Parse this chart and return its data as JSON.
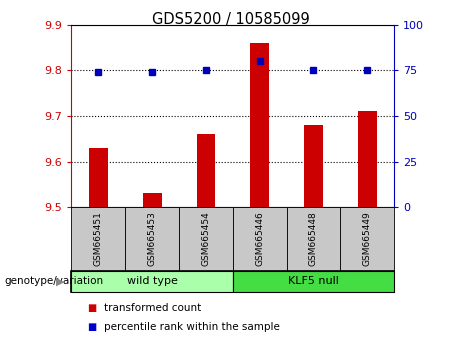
{
  "title": "GDS5200 / 10585099",
  "categories": [
    "GSM665451",
    "GSM665453",
    "GSM665454",
    "GSM665446",
    "GSM665448",
    "GSM665449"
  ],
  "red_values": [
    9.63,
    9.53,
    9.66,
    9.86,
    9.68,
    9.71
  ],
  "blue_values": [
    74,
    74,
    75,
    80,
    75,
    75
  ],
  "ylim_left": [
    9.5,
    9.9
  ],
  "ylim_right": [
    0,
    100
  ],
  "yticks_left": [
    9.5,
    9.6,
    9.7,
    9.8,
    9.9
  ],
  "yticks_right": [
    0,
    25,
    50,
    75,
    100
  ],
  "groups": [
    {
      "label": "wild type",
      "indices": [
        0,
        1,
        2
      ],
      "color": "#AAFFAA"
    },
    {
      "label": "KLF5 null",
      "indices": [
        3,
        4,
        5
      ],
      "color": "#44DD44"
    }
  ],
  "group_label": "genotype/variation",
  "legend_items": [
    {
      "label": "transformed count",
      "color": "#CC0000"
    },
    {
      "label": "percentile rank within the sample",
      "color": "#0000CC"
    }
  ],
  "bar_color": "#CC0000",
  "dot_color": "#0000BB",
  "bg_color": "#FFFFFF",
  "tick_area_color": "#C8C8C8",
  "bar_width": 0.35,
  "left_axis_color": "#CC0000",
  "right_axis_color": "#0000BB"
}
